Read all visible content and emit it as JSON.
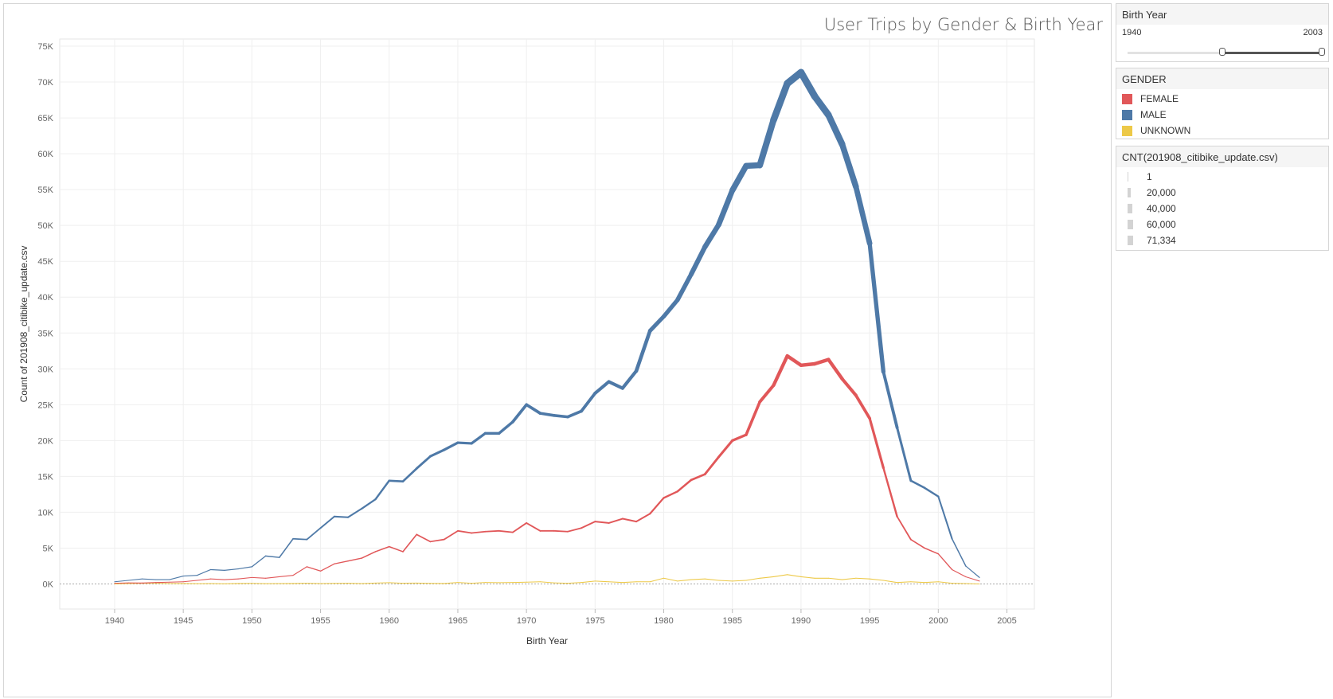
{
  "chart_title": "User Trips by Gender & Birth Year",
  "filter": {
    "title": "Birth Year",
    "min_label": "1940",
    "max_label": "2003",
    "range_min": 1880,
    "range_max": 2003,
    "selected_min": 1940,
    "selected_max": 2003
  },
  "color_legend": {
    "title": "GENDER",
    "items": [
      {
        "label": "FEMALE",
        "color": "#e15759"
      },
      {
        "label": "MALE",
        "color": "#4e79a7"
      },
      {
        "label": "UNKNOWN",
        "color": "#edc948"
      }
    ]
  },
  "size_legend": {
    "title": "CNT(201908_citibike_update.csv)",
    "items": [
      {
        "label": "1",
        "value": 1
      },
      {
        "label": "20,000",
        "value": 20000
      },
      {
        "label": "40,000",
        "value": 40000
      },
      {
        "label": "60,000",
        "value": 60000
      },
      {
        "label": "71,334",
        "value": 71334
      }
    ]
  },
  "chart_data": {
    "type": "line",
    "title": "User Trips by Gender & Birth Year",
    "xlabel": "Birth Year",
    "ylabel": "Count of 201908_citibike_update.csv",
    "xlim": [
      1936,
      2007
    ],
    "ylim": [
      -3500,
      76000
    ],
    "x_ticks": [
      1940,
      1945,
      1950,
      1955,
      1960,
      1965,
      1970,
      1975,
      1980,
      1985,
      1990,
      1995,
      2000,
      2005
    ],
    "x_tick_labels": [
      "1940",
      "1945",
      "1950",
      "1955",
      "1960",
      "1965",
      "1970",
      "1975",
      "1980",
      "1985",
      "1990",
      "1995",
      "2000",
      "2005"
    ],
    "y_ticks": [
      0,
      5000,
      10000,
      15000,
      20000,
      25000,
      30000,
      35000,
      40000,
      45000,
      50000,
      55000,
      60000,
      65000,
      70000,
      75000
    ],
    "y_tick_labels": [
      "0K",
      "5K",
      "10K",
      "15K",
      "20K",
      "25K",
      "30K",
      "35K",
      "40K",
      "45K",
      "50K",
      "55K",
      "60K",
      "65K",
      "70K",
      "75K"
    ],
    "grid": true,
    "legend": "right",
    "x": [
      1940,
      1941,
      1942,
      1943,
      1944,
      1945,
      1946,
      1947,
      1948,
      1949,
      1950,
      1951,
      1952,
      1953,
      1954,
      1955,
      1956,
      1957,
      1958,
      1959,
      1960,
      1961,
      1962,
      1963,
      1964,
      1965,
      1966,
      1967,
      1968,
      1969,
      1970,
      1971,
      1972,
      1973,
      1974,
      1975,
      1976,
      1977,
      1978,
      1979,
      1980,
      1981,
      1982,
      1983,
      1984,
      1985,
      1986,
      1987,
      1988,
      1989,
      1990,
      1991,
      1992,
      1993,
      1994,
      1995,
      1996,
      1997,
      1998,
      1999,
      2000,
      2001,
      2002,
      2003
    ],
    "series": [
      {
        "name": "FEMALE",
        "color": "#e15759",
        "values": [
          100,
          150,
          130,
          200,
          250,
          300,
          500,
          700,
          600,
          700,
          900,
          800,
          1000,
          1200,
          2400,
          1800,
          2800,
          3200,
          3600,
          4500,
          5200,
          4500,
          6900,
          5900,
          6200,
          7400,
          7100,
          7300,
          7400,
          7200,
          8500,
          7400,
          7400,
          7300,
          7800,
          8700,
          8500,
          9100,
          8700,
          9800,
          12000,
          12900,
          14500,
          15300,
          17700,
          20000,
          20800,
          25400,
          27700,
          31800,
          30500,
          30700,
          31300,
          28600,
          26300,
          23100,
          16200,
          9400,
          6200,
          5000,
          4200,
          2000,
          1000,
          400
        ]
      },
      {
        "name": "MALE",
        "color": "#4e79a7",
        "values": [
          300,
          500,
          700,
          600,
          600,
          1100,
          1200,
          2000,
          1900,
          2100,
          2400,
          3900,
          3700,
          6300,
          6200,
          7800,
          9400,
          9300,
          10500,
          11800,
          14400,
          14300,
          16100,
          17800,
          18700,
          19700,
          19600,
          21000,
          21000,
          22600,
          25000,
          23800,
          23500,
          23300,
          24100,
          26600,
          28200,
          27300,
          29700,
          35300,
          37300,
          39600,
          43200,
          47000,
          50100,
          54900,
          58300,
          58400,
          64700,
          69800,
          71334,
          68000,
          65400,
          61300,
          55400,
          47500,
          29600,
          21800,
          14400,
          13400,
          12200,
          6300,
          2500,
          900
        ]
      },
      {
        "name": "UNKNOWN",
        "color": "#edc948",
        "values": [
          0,
          50,
          80,
          100,
          50,
          60,
          40,
          50,
          30,
          60,
          80,
          40,
          50,
          60,
          100,
          50,
          80,
          100,
          50,
          120,
          180,
          100,
          120,
          80,
          60,
          200,
          100,
          200,
          180,
          200,
          250,
          300,
          150,
          100,
          200,
          400,
          300,
          200,
          300,
          300,
          800,
          400,
          600,
          700,
          500,
          400,
          500,
          800,
          1000,
          1300,
          1000,
          800,
          800,
          600,
          800,
          700,
          500,
          200,
          300,
          200,
          300,
          100,
          50,
          0
        ]
      }
    ]
  }
}
